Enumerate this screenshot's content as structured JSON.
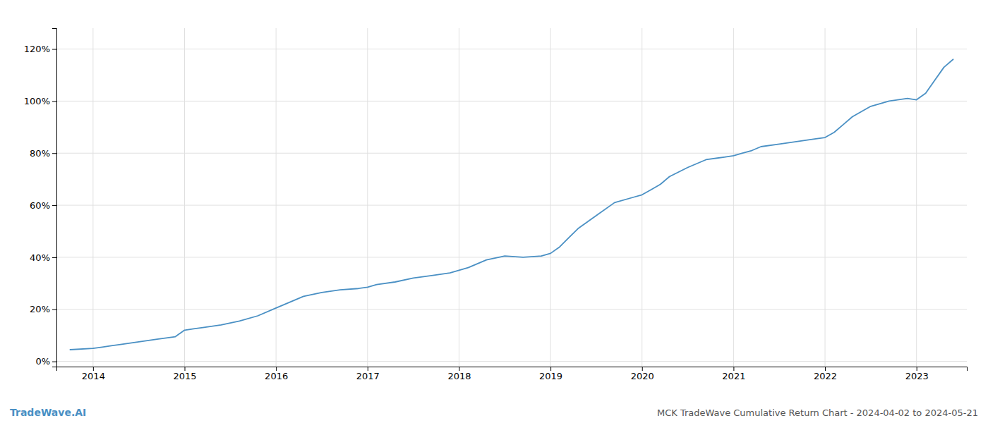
{
  "chart_data": {
    "type": "line",
    "title": "MCK TradeWave Cumulative Return Chart - 2024-04-02 to 2024-05-21",
    "annotations": [
      "TradeWave.AI"
    ],
    "color": "#4a90c4",
    "x": [
      2013.75,
      2014.0,
      2014.1,
      2014.2,
      2014.3,
      2014.5,
      2014.7,
      2014.9,
      2015.0,
      2015.1,
      2015.2,
      2015.4,
      2015.6,
      2015.8,
      2016.0,
      2016.1,
      2016.2,
      2016.3,
      2016.5,
      2016.7,
      2016.9,
      2017.0,
      2017.1,
      2017.3,
      2017.5,
      2017.7,
      2017.9,
      2018.0,
      2018.1,
      2018.2,
      2018.3,
      2018.5,
      2018.7,
      2018.9,
      2019.0,
      2019.1,
      2019.2,
      2019.3,
      2019.5,
      2019.7,
      2019.9,
      2020.0,
      2020.1,
      2020.2,
      2020.3,
      2020.5,
      2020.7,
      2020.9,
      2021.0,
      2021.1,
      2021.2,
      2021.3,
      2021.5,
      2021.7,
      2021.9,
      2022.0,
      2022.1,
      2022.2,
      2022.3,
      2022.5,
      2022.7,
      2022.9,
      2023.0,
      2023.1,
      2023.2,
      2023.3,
      2023.4
    ],
    "values": [
      4.5,
      5.0,
      5.5,
      6.0,
      6.5,
      7.5,
      8.5,
      9.5,
      12.0,
      12.5,
      13.0,
      14.0,
      15.5,
      17.5,
      20.5,
      22.0,
      23.5,
      25.0,
      26.5,
      27.5,
      28.0,
      28.5,
      29.5,
      30.5,
      32.0,
      33.0,
      34.0,
      35.0,
      36.0,
      37.5,
      39.0,
      40.5,
      40.0,
      40.5,
      41.5,
      44.0,
      47.5,
      51.0,
      56.0,
      61.0,
      63.0,
      64.0,
      66.0,
      68.0,
      71.0,
      74.5,
      77.5,
      78.5,
      79.0,
      80.0,
      81.0,
      82.5,
      83.5,
      84.5,
      85.5,
      86.0,
      88.0,
      91.0,
      94.0,
      98.0,
      100.0,
      101.0,
      100.5,
      103.0,
      108.0,
      113.0,
      116.0
    ],
    "xlim": [
      2013.6,
      2023.55
    ],
    "xticks": [
      2014,
      2015,
      2016,
      2017,
      2018,
      2019,
      2020,
      2021,
      2022,
      2023
    ],
    "ylim": [
      -2,
      128
    ],
    "yticks": [
      {
        "value": 0,
        "label": "0%"
      },
      {
        "value": 20,
        "label": "20%"
      },
      {
        "value": 40,
        "label": "40%"
      },
      {
        "value": 60,
        "label": "60%"
      },
      {
        "value": 80,
        "label": "80%"
      },
      {
        "value": 100,
        "label": "100%"
      },
      {
        "value": 120,
        "label": "120%"
      }
    ],
    "grid": true
  }
}
